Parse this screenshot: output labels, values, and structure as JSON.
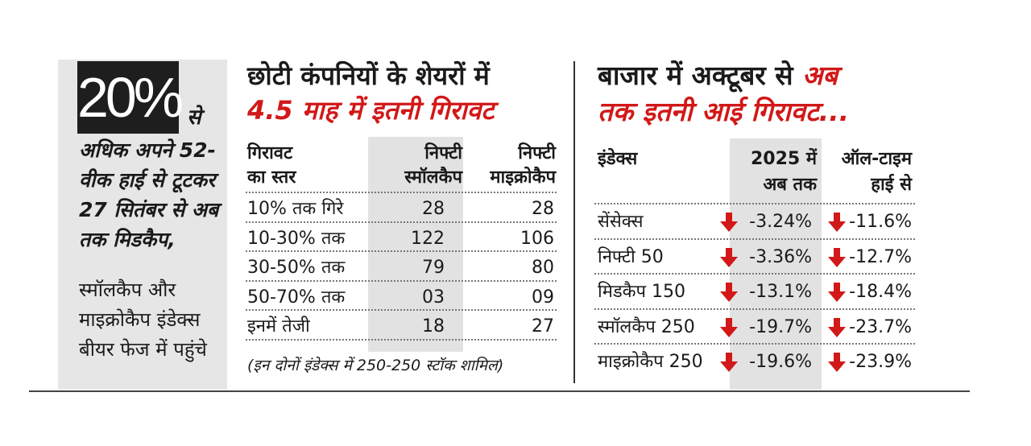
{
  "left": {
    "badge": "20%",
    "badge_suffix": "से",
    "bold_text": "अधिक अपने 52-वीक हाई से टूटकर 27 सितंबर से अब तक मिडकैप,",
    "normal_text": "स्मॉलकैप और माइक्रोकैप इंडेक्स बीयर फेज में पहुंचे"
  },
  "middle": {
    "title": "छोटी कंपनियों के शेयरों में",
    "subtitle": "4.5 माह में इतनी गिरावट",
    "headers": [
      [
        "गिरावट",
        "का स्तर"
      ],
      [
        "निफ्टी",
        "स्मॉलकैप"
      ],
      [
        "निफ्टी",
        "माइक्रोकैप"
      ]
    ],
    "rows": [
      [
        "10% तक गिरे",
        "28",
        "28"
      ],
      [
        "10-30% तक",
        "122",
        "106"
      ],
      [
        "30-50% तक",
        "79",
        "80"
      ],
      [
        "50-70% तक",
        "03",
        "09"
      ],
      [
        "इनमें तेजी",
        "18",
        "27"
      ]
    ],
    "note": "(इन दोनों इंडेक्स में 250-250 स्टॉक शामिल)"
  },
  "right": {
    "title_black": "बाजार में अक्टूबर से ",
    "title_red": "अब",
    "subtitle": "तक इतनी आई गिरावट...",
    "headers": [
      [
        "इंडेक्स"
      ],
      [
        "2025 में",
        "अब तक"
      ],
      [
        "ऑल-टाइम",
        "हाई से"
      ]
    ],
    "rows": [
      [
        "सेंसेक्स",
        "-3.24%",
        "-11.6%"
      ],
      [
        "निफ्टी 50",
        "-3.36%",
        "-12.7%"
      ],
      [
        "मिडकैप 150",
        "-13.1%",
        "-18.4%"
      ],
      [
        "स्मॉलकैप 250",
        "-19.7%",
        "-23.7%"
      ],
      [
        "माइक्रोकैप 250",
        "-19.6%",
        "-23.9%"
      ]
    ],
    "arrow_icon": "down-arrow-icon",
    "arrow_color": "#d21818"
  },
  "colors": {
    "accent_red": "#d21818",
    "panel_grey": "#e6e6e6",
    "column_shade": "#e2e2e2"
  }
}
